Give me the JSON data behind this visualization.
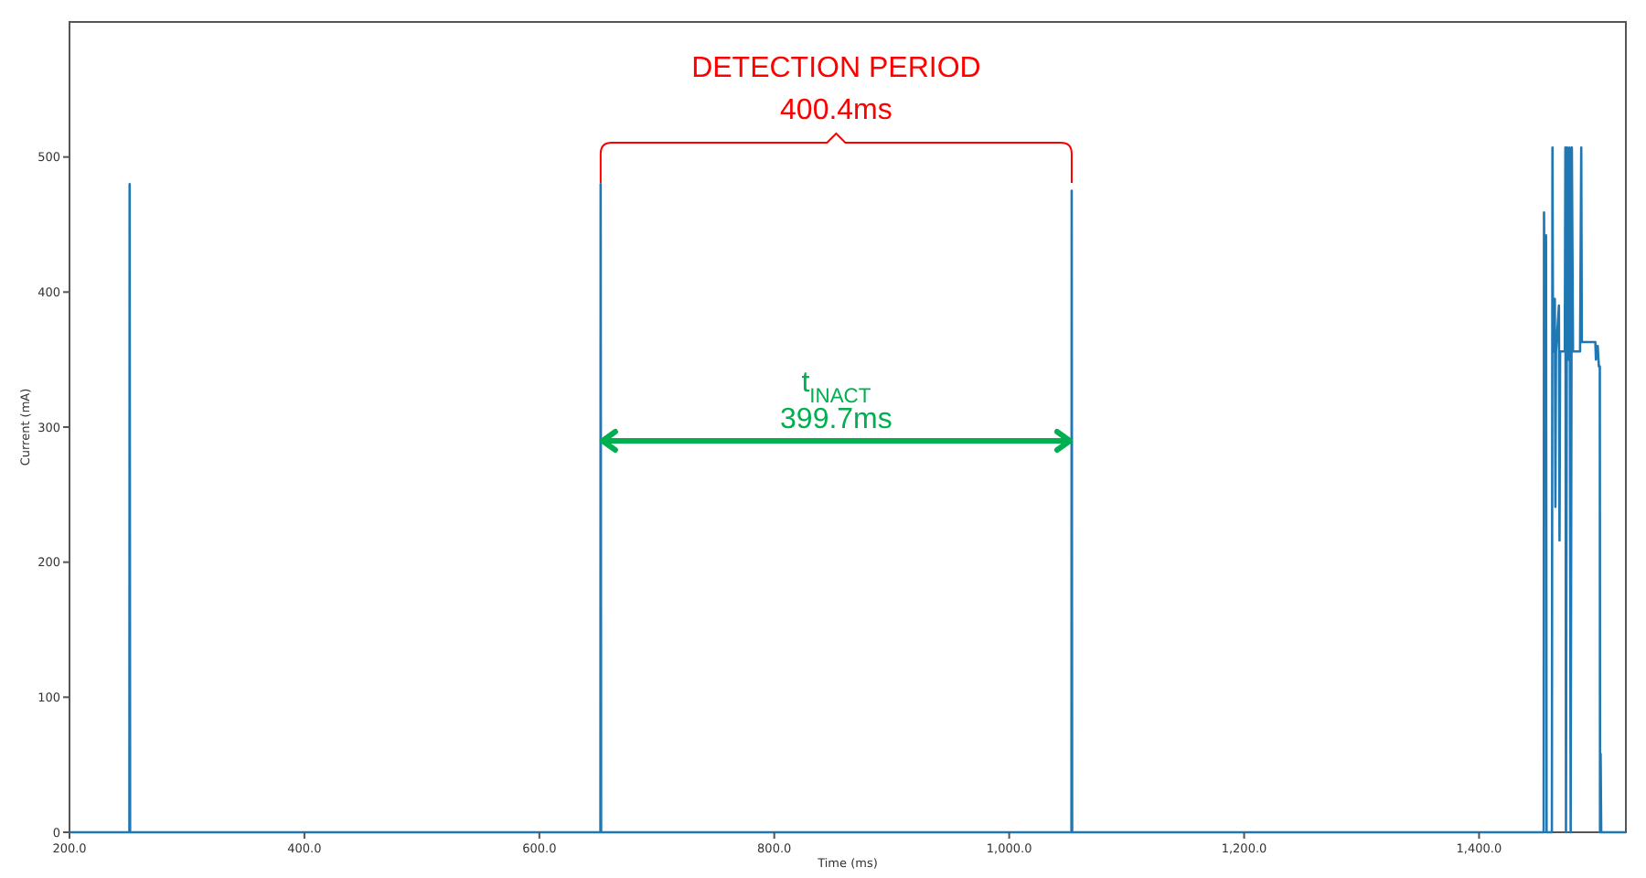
{
  "chart_data": {
    "type": "line",
    "xlabel": "Time (ms)",
    "ylabel": "Current (mA)",
    "xlim": [
      200,
      1525
    ],
    "ylim": [
      0,
      600
    ],
    "xticks": [
      {
        "value": 200,
        "label": "200.0"
      },
      {
        "value": 400,
        "label": "400.0"
      },
      {
        "value": 600,
        "label": "600.0"
      },
      {
        "value": 800,
        "label": "800.0"
      },
      {
        "value": 1000,
        "label": "1,000.0"
      },
      {
        "value": 1200,
        "label": "1,200.0"
      },
      {
        "value": 1400,
        "label": "1,400.0"
      }
    ],
    "yticks": [
      0,
      100,
      200,
      300,
      400,
      500
    ],
    "grid": false,
    "series": [
      {
        "color": "#1f77b4",
        "x": [
          200,
          251,
          251.2,
          251.6,
          652,
          652.2,
          652.6,
          1053,
          1053.2,
          1053.6,
          1455,
          1455.3,
          1456,
          1457,
          1457.5,
          1462,
          1462.5,
          1463,
          1464.5,
          1465,
          1465.5,
          1468,
          1468.5,
          1469,
          1473,
          1473.5,
          1474,
          1475,
          1476,
          1477,
          1478,
          1479,
          1480,
          1486,
          1487,
          1487.5,
          1499,
          1499.5,
          1501,
          1502,
          1502.8,
          1503,
          1503.5,
          1504,
          1525
        ],
        "values": [
          0,
          0,
          480,
          0,
          0,
          480,
          0,
          0,
          475,
          0,
          0,
          459,
          356,
          442,
          0,
          0,
          507,
          356,
          395,
          241,
          356,
          390,
          216,
          356,
          356,
          507,
          0,
          507,
          350,
          507,
          0,
          507,
          356,
          356,
          507,
          363,
          363,
          350,
          360,
          345,
          345,
          0,
          58,
          0,
          0
        ]
      }
    ],
    "annotations": [
      "DETECTION PERIOD",
      "400.4ms",
      "t$_{INACT}$",
      "399.7ms"
    ]
  }
}
